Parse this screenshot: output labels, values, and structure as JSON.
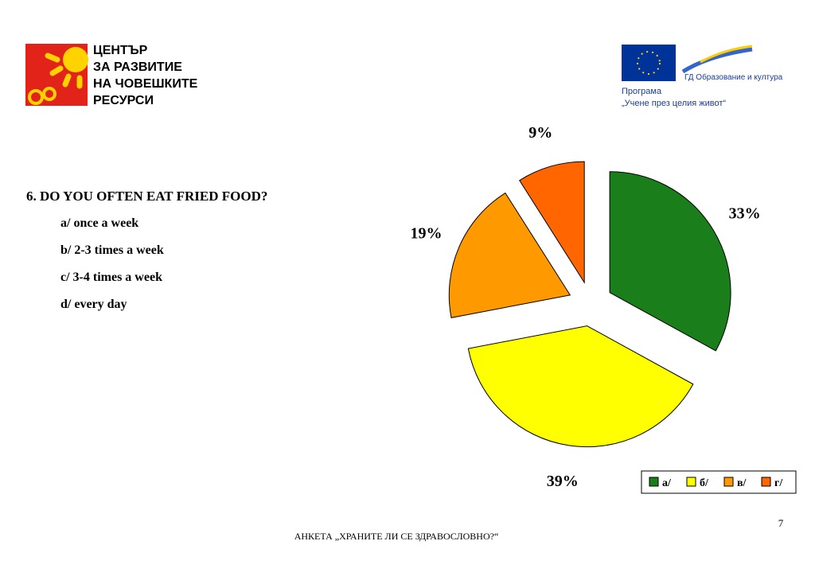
{
  "header": {
    "org_lines": [
      "ЦЕНТЪР",
      "ЗА РАЗВИТИЕ",
      "НА ЧОВЕШКИТЕ",
      "РЕСУРСИ"
    ],
    "eu_dg": "ГД Образование и култура",
    "program_lines": [
      "Програма",
      "„Учене през целия живот“"
    ]
  },
  "question": {
    "title": "6.  DO YOU OFTEN EAT FRIED FOOD?",
    "options": [
      "a/ once a week",
      "b/ 2-3 times a week",
      "c/ 3-4 times a week",
      "d/ every day"
    ]
  },
  "chart_data": {
    "type": "pie",
    "categories": [
      "а/",
      "б/",
      "в/",
      "г/"
    ],
    "values": [
      33,
      39,
      19,
      9
    ],
    "value_labels": [
      "33%",
      "39%",
      "19%",
      "9%"
    ],
    "colors": [
      "#1a7f1a",
      "#ffff00",
      "#ff9900",
      "#ff6600"
    ],
    "legend": "bottom-right"
  },
  "footer": {
    "text": "АНКЕТА „ХРАНИТЕ ЛИ СЕ ЗДРАВОСЛОВНО?“",
    "page": "7"
  }
}
